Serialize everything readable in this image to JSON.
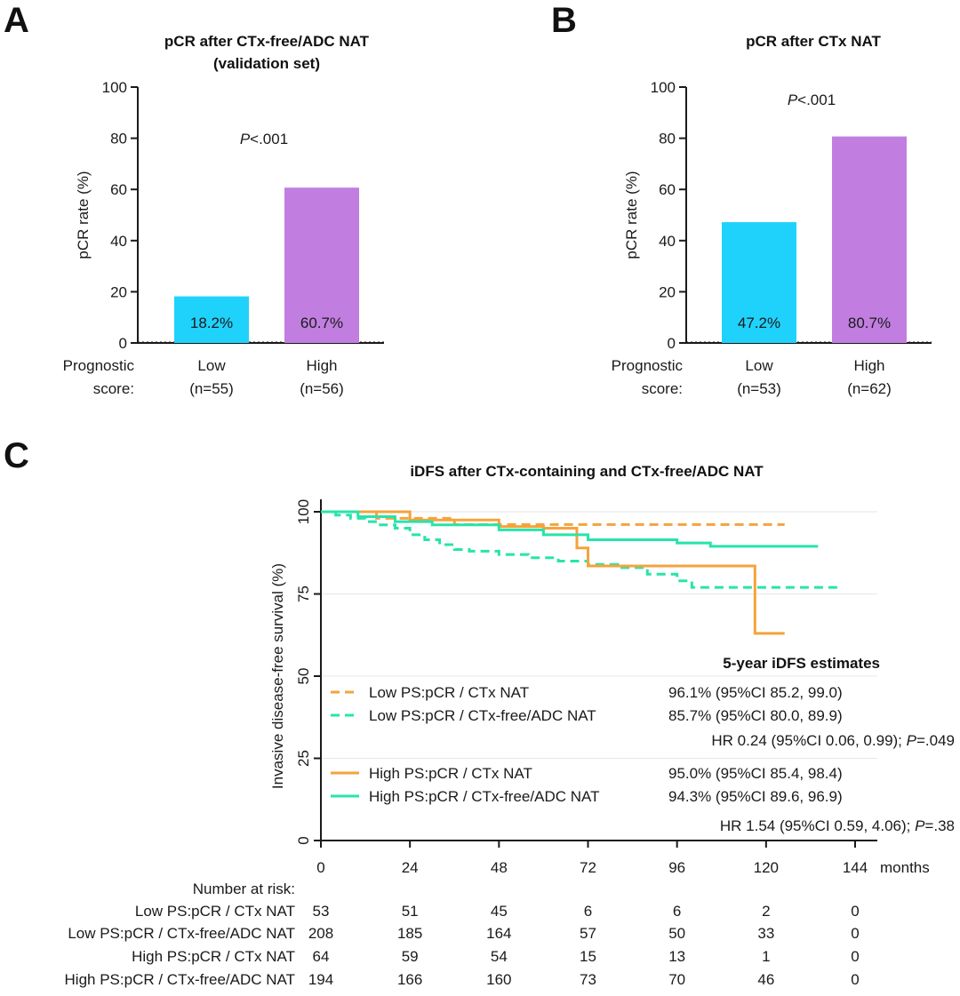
{
  "colors": {
    "cyan": "#1fd2fb",
    "purple": "#c17ee0",
    "orange": "#f5a33c",
    "teal": "#27e4aa",
    "axis": "#1a1a1a"
  },
  "chart_data": [
    {
      "type": "bar",
      "panel": "A",
      "title": "pCR after CTx-free/ADC NAT",
      "subtitle": "(validation set)",
      "ylabel": "pCR rate (%)",
      "ylim": [
        0,
        100
      ],
      "yticks": [
        "0",
        "20",
        "40",
        "60",
        "80",
        "100"
      ],
      "xlabel_lines": [
        "Prognostic",
        "score:"
      ],
      "categories": [
        "Low",
        "High"
      ],
      "category_n": [
        "(n=55)",
        "(n=56)"
      ],
      "values": [
        18.2,
        60.7
      ],
      "value_labels": [
        "18.2%",
        "60.7%"
      ],
      "bar_colors": [
        "cyan",
        "purple"
      ],
      "p_value": {
        "italic": "P",
        "rest": "<.001"
      }
    },
    {
      "type": "bar",
      "panel": "B",
      "title": "pCR after CTx NAT",
      "ylabel": "pCR rate (%)",
      "ylim": [
        0,
        100
      ],
      "yticks": [
        "0",
        "20",
        "40",
        "60",
        "80",
        "100"
      ],
      "xlabel_lines": [
        "Prognostic",
        "score:"
      ],
      "categories": [
        "Low",
        "High"
      ],
      "category_n": [
        "(n=53)",
        "(n=62)"
      ],
      "values": [
        47.2,
        80.7
      ],
      "value_labels": [
        "47.2%",
        "80.7%"
      ],
      "bar_colors": [
        "cyan",
        "purple"
      ],
      "p_value": {
        "italic": "P",
        "rest": "<.001"
      }
    },
    {
      "type": "line",
      "panel": "C",
      "title": "iDFS after CTx-containing and CTx-free/ADC NAT",
      "ylabel": "Invasive disease-free survival (%)",
      "xlabel": "months",
      "xlim": [
        0,
        144
      ],
      "ylim": [
        0,
        100
      ],
      "xticks": [
        0,
        24,
        48,
        72,
        96,
        120,
        144
      ],
      "yticks": [
        0,
        25,
        50,
        75,
        100
      ],
      "series": [
        {
          "name": "Low PS:pCR / CTx NAT",
          "color": "orange",
          "dash": true,
          "x": [
            0,
            10,
            15,
            36,
            125
          ],
          "y": [
            100,
            100,
            98,
            96.1,
            96.1
          ]
        },
        {
          "name": "Low PS:pCR / CTx-free/ADC NAT",
          "color": "teal",
          "dash": true,
          "x": [
            0,
            4,
            8,
            12,
            16,
            20,
            24,
            28,
            32,
            36,
            40,
            48,
            56,
            64,
            72,
            80,
            88,
            96,
            100,
            140
          ],
          "y": [
            100,
            99,
            98,
            97,
            96,
            95,
            93,
            91.5,
            90,
            88.5,
            88,
            87,
            86,
            85,
            84,
            83,
            81,
            79,
            77,
            77
          ]
        },
        {
          "name": "High PS:pCR / CTx NAT",
          "color": "orange",
          "dash": false,
          "x": [
            0,
            24,
            48,
            60,
            69,
            72,
            78,
            117,
            125
          ],
          "y": [
            100,
            97.5,
            95.5,
            95,
            89,
            83.5,
            83.5,
            63,
            63
          ]
        },
        {
          "name": "High PS:pCR / CTx-free/ADC NAT",
          "color": "teal",
          "dash": false,
          "x": [
            0,
            10,
            20,
            30,
            48,
            60,
            72,
            96,
            105,
            134
          ],
          "y": [
            100,
            98.5,
            97,
            96,
            94.5,
            93,
            91.5,
            90.5,
            89.5,
            89.5
          ]
        }
      ],
      "estimates_title": "5-year iDFS estimates",
      "legend": [
        {
          "label": "Low PS:pCR / CTx NAT",
          "estimate": "96.1% (95%CI 85.2, 99.0)",
          "color": "orange",
          "dash": true
        },
        {
          "label": "Low PS:pCR / CTx-free/ADC NAT",
          "estimate": "85.7% (95%CI 80.0, 89.9)",
          "color": "teal",
          "dash": true
        },
        {
          "label": "High PS:pCR / CTx NAT",
          "estimate": "95.0% (95%CI 85.4, 98.4)",
          "color": "orange",
          "dash": false
        },
        {
          "label": "High PS:pCR / CTx-free/ADC NAT",
          "estimate": "94.3% (95%CI 89.6, 96.9)",
          "color": "teal",
          "dash": false
        }
      ],
      "hr_low": {
        "text": "HR 0.24 (95%CI 0.06, 0.99); ",
        "p_italic": "P",
        "p_rest": "=.049"
      },
      "hr_high": {
        "text": "HR 1.54 (95%CI 0.59, 4.06); ",
        "p_italic": "P",
        "p_rest": "=.38"
      },
      "risk_table": {
        "header": "Number at risk:",
        "rows": [
          {
            "label": "Low PS:pCR / CTx NAT",
            "values": [
              "53",
              "51",
              "45",
              "6",
              "6",
              "2",
              "0"
            ]
          },
          {
            "label": "Low PS:pCR / CTx-free/ADC NAT",
            "values": [
              "208",
              "185",
              "164",
              "57",
              "50",
              "33",
              "0"
            ]
          },
          {
            "label": "High PS:pCR / CTx NAT",
            "values": [
              "64",
              "59",
              "54",
              "15",
              "13",
              "1",
              "0"
            ]
          },
          {
            "label": "High PS:pCR / CTx-free/ADC NAT",
            "values": [
              "194",
              "166",
              "160",
              "73",
              "70",
              "46",
              "0"
            ]
          }
        ]
      }
    }
  ]
}
